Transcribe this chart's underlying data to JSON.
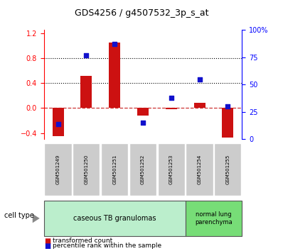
{
  "title": "GDS4256 / g4507532_3p_s_at",
  "samples": [
    "GSM501249",
    "GSM501250",
    "GSM501251",
    "GSM501252",
    "GSM501253",
    "GSM501254",
    "GSM501255"
  ],
  "transformed_count": [
    -0.45,
    0.52,
    1.05,
    -0.12,
    -0.02,
    0.08,
    -0.47
  ],
  "percentile_rank": [
    14,
    77,
    87,
    15,
    38,
    55,
    30
  ],
  "ylim_left": [
    -0.5,
    1.25
  ],
  "ylim_right": [
    0,
    100
  ],
  "yticks_left": [
    -0.4,
    0.0,
    0.4,
    0.8,
    1.2
  ],
  "yticks_right": [
    0,
    25,
    50,
    75,
    100
  ],
  "hlines": [
    0.4,
    0.8
  ],
  "bar_color": "#cc1111",
  "dot_color": "#1111cc",
  "zero_line_color": "#cc3333",
  "group1_label": "caseous TB granulomas",
  "group1_count": 5,
  "group1_color": "#bbeecc",
  "group2_label": "normal lung\nparenchyma",
  "group2_count": 2,
  "group2_color": "#77dd77",
  "legend_bar_label": "transformed count",
  "legend_dot_label": "percentile rank within the sample",
  "cell_type_label": "cell type",
  "title_fontsize": 9,
  "tick_fontsize": 7,
  "label_fontsize": 6,
  "sample_fontsize": 5
}
